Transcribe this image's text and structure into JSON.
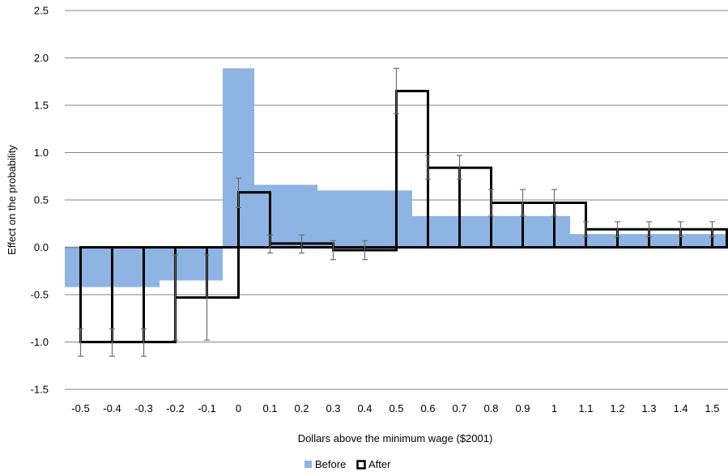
{
  "chart_data": {
    "type": "bar",
    "categories": [
      "-0.5",
      "-0.4",
      "-0.3",
      "-0.2",
      "-0.1",
      "0",
      "0.1",
      "0.2",
      "0.3",
      "0.4",
      "0.5",
      "0.6",
      "0.7",
      "0.8",
      "0.9",
      "1",
      "1.1",
      "1.2",
      "1.3",
      "1.4",
      "1.5"
    ],
    "xlabel": "Dollars above the minimum wage ($2001)",
    "ylabel": "Effect on the probability",
    "ylim": [
      -1.5,
      2.5
    ],
    "yticks": [
      "2.5",
      "2.0",
      "1.5",
      "1.0",
      "0.5",
      "0.0",
      "-0.5",
      "-1.0",
      "-1.5"
    ],
    "ytick_values": [
      2.5,
      2.0,
      1.5,
      1.0,
      0.5,
      0.0,
      -0.5,
      -1.0,
      -1.5
    ],
    "grid": true,
    "legend_position": "bottom",
    "series": [
      {
        "name": "Before",
        "style": "filled",
        "color": "#8db4e2",
        "values": [
          -0.42,
          -0.42,
          -0.42,
          -0.35,
          -0.35,
          1.89,
          0.66,
          0.66,
          0.6,
          0.6,
          0.6,
          0.33,
          0.33,
          0.33,
          0.33,
          0.33,
          0.14,
          0.14,
          0.14,
          0.14,
          0.14
        ]
      },
      {
        "name": "After",
        "style": "outline",
        "color": "#000000",
        "values": [
          -1.0,
          -1.0,
          -1.0,
          -0.53,
          -0.53,
          0.58,
          0.04,
          0.04,
          -0.03,
          -0.03,
          1.65,
          0.84,
          0.84,
          0.47,
          0.47,
          0.47,
          0.19,
          0.19,
          0.19,
          0.19,
          0.19
        ],
        "error_low": [
          -1.15,
          -1.15,
          -1.15,
          -0.98,
          -0.98,
          0.42,
          -0.06,
          -0.06,
          -0.13,
          -0.13,
          1.41,
          0.72,
          0.72,
          0.33,
          0.33,
          0.33,
          0.11,
          0.11,
          0.11,
          0.11,
          0.11
        ],
        "error_high": [
          -0.86,
          -0.86,
          -0.86,
          -0.08,
          -0.08,
          0.73,
          0.13,
          0.13,
          0.07,
          0.07,
          1.89,
          0.97,
          0.97,
          0.61,
          0.61,
          0.61,
          0.27,
          0.27,
          0.27,
          0.27,
          0.27
        ]
      }
    ]
  }
}
